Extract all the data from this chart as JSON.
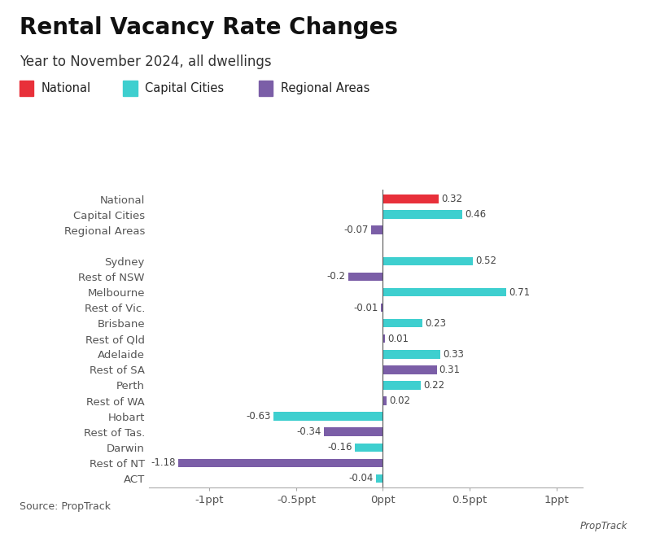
{
  "title": "Rental Vacancy Rate Changes",
  "subtitle": "Year to November 2024, all dwellings",
  "source": "Source: PropTrack",
  "categories": [
    "National",
    "Capital Cities",
    "Regional Areas",
    "",
    "Sydney",
    "Rest of NSW",
    "Melbourne",
    "Rest of Vic.",
    "Brisbane",
    "Rest of Qld",
    "Adelaide",
    "Rest of SA",
    "Perth",
    "Rest of WA",
    "Hobart",
    "Rest of Tas.",
    "Darwin",
    "Rest of NT",
    "ACT"
  ],
  "values": [
    0.32,
    0.46,
    -0.07,
    null,
    0.52,
    -0.2,
    0.71,
    -0.01,
    0.23,
    0.01,
    0.33,
    0.31,
    0.22,
    0.02,
    -0.63,
    -0.34,
    -0.16,
    -1.18,
    -0.04
  ],
  "colors": [
    "#E8303A",
    "#3ECFCF",
    "#7B5EA7",
    null,
    "#3ECFCF",
    "#7B5EA7",
    "#3ECFCF",
    "#7B5EA7",
    "#3ECFCF",
    "#7B5EA7",
    "#3ECFCF",
    "#7B5EA7",
    "#3ECFCF",
    "#7B5EA7",
    "#3ECFCF",
    "#7B5EA7",
    "#3ECFCF",
    "#7B5EA7",
    "#3ECFCF"
  ],
  "xlim": [
    -1.35,
    1.15
  ],
  "xticks": [
    -1.0,
    -0.5,
    0.0,
    0.5,
    1.0
  ],
  "xticklabels": [
    "-1ppt",
    "-0.5ppt",
    "0ppt",
    "0.5ppt",
    "1ppt"
  ],
  "legend": [
    {
      "label": "National",
      "color": "#E8303A"
    },
    {
      "label": "Capital Cities",
      "color": "#3ECFCF"
    },
    {
      "label": "Regional Areas",
      "color": "#7B5EA7"
    }
  ],
  "bar_height": 0.55,
  "background_color": "#ffffff",
  "title_fontsize": 20,
  "subtitle_fontsize": 12,
  "label_fontsize": 9.5,
  "tick_fontsize": 9.5,
  "value_fontsize": 8.5
}
